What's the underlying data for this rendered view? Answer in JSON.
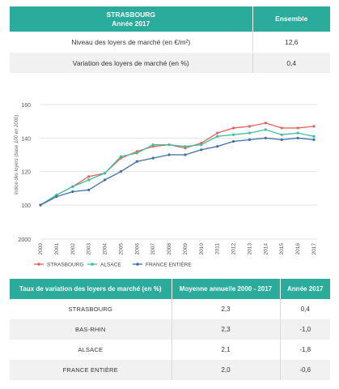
{
  "summary_table": {
    "header_title": "STRASBOURG",
    "header_subtitle": "Année 2017",
    "header_value": "Ensemble",
    "rows": [
      {
        "label": "Niveau des loyers de marché (en €/m²)",
        "value": "12,6"
      },
      {
        "label": "Variation des loyers de marché (en %)",
        "value": "0,4"
      }
    ]
  },
  "chart_data": {
    "type": "line",
    "ylabel": "Indice des loyers (base 100 en 2000)",
    "ylim": [
      100,
      160
    ],
    "yticks": [
      "100",
      "120",
      "140",
      "160"
    ],
    "extra_ytick": "2000",
    "x": [
      "2000",
      "2001",
      "2002",
      "2003",
      "2004",
      "2005",
      "2006",
      "2007",
      "2008",
      "2009",
      "2010",
      "2011",
      "2012",
      "2013",
      "2014",
      "2015",
      "2016",
      "2017"
    ],
    "grid": "horizontal",
    "legend_position": "bottom",
    "series": [
      {
        "name": "STRASBOURG",
        "color": "#e4605e",
        "values": [
          100,
          106,
          111,
          117,
          119,
          128,
          132,
          135,
          136,
          134,
          137,
          143,
          146,
          147,
          149,
          146,
          146,
          147
        ]
      },
      {
        "name": "ALSACE",
        "color": "#3dbf9e",
        "values": [
          100,
          106,
          111,
          115,
          119,
          129,
          131,
          136,
          136,
          135,
          136,
          141,
          142,
          143,
          145,
          142,
          143,
          141
        ]
      },
      {
        "name": "FRANCE ENTIÈRE",
        "color": "#3f6fa5",
        "values": [
          100,
          105,
          108,
          109,
          115,
          120,
          126,
          128,
          130,
          130,
          133,
          135,
          138,
          139,
          140,
          139,
          140,
          139
        ]
      }
    ]
  },
  "variation_table": {
    "headers": [
      "Taux de variation des loyers de marché (en %)",
      "Moyenne annuelle 2000 - 2017",
      "Année 2017"
    ],
    "rows": [
      [
        "STRASBOURG",
        "2,3",
        "0,4"
      ],
      [
        "BAS-RHIN",
        "2,3",
        "-1,0"
      ],
      [
        "ALSACE",
        "2,1",
        "-1,8"
      ],
      [
        "FRANCE ENTIÈRE",
        "2,0",
        "-0,6"
      ]
    ]
  }
}
